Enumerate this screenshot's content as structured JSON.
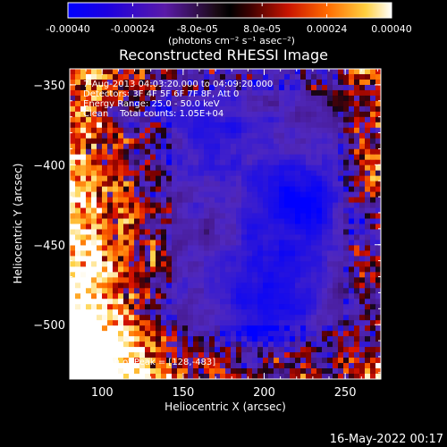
{
  "chart_data": {
    "type": "heatmap",
    "title": "Reconstructed RHESSI Image",
    "xlabel": "Heliocentric X (arcsec)",
    "ylabel": "Heliocentric Y (arcsec)",
    "xlim": [
      80,
      272
    ],
    "ylim": [
      -534,
      -340
    ],
    "x_ticks": [
      100,
      150,
      200,
      250
    ],
    "y_ticks": [
      -350,
      -400,
      -450,
      -500
    ],
    "colorbar": {
      "range": [
        -0.0004,
        0.0004
      ],
      "tick_values": [
        -0.0004,
        -0.00024,
        -8e-05,
        8e-05,
        0.00024,
        0.0004
      ],
      "tick_labels": [
        "-0.00040",
        "-0.00024",
        "-8.0e-05",
        "8.0e-05",
        "0.00024",
        "0.00040"
      ],
      "units_label": "(photons cm⁻² s⁻¹ asec⁻²)"
    },
    "annotations": [
      "7-Aug-2013 04:03:20.000 to 04:09:20.000",
      "Detectors: 3F 4F 5F 6F 7F 8F, Att 0",
      "Energy Range: 25.0 - 50.0 keV",
      "Clean    Total counts: 1.05E+04"
    ],
    "peak_annotation": "Position of Peak = [128,-483]",
    "peak_position": [
      128,
      -483
    ],
    "grid": false
  },
  "footer": {
    "timestamp": "16-May-2022 00:17"
  }
}
